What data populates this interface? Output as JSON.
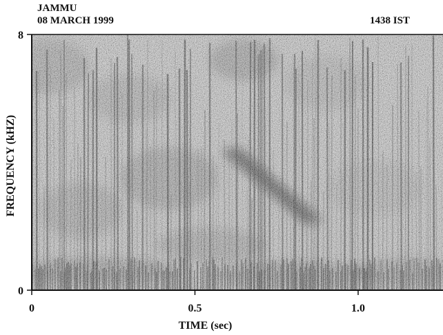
{
  "header": {
    "location": "JAMMU",
    "date": "08 MARCH 1999",
    "time": "1438 IST"
  },
  "chart_data": {
    "type": "heatmap",
    "subtype": "spectrogram",
    "title": "",
    "xlabel": "TIME (sec)",
    "ylabel": "FREQUENCY (kHZ)",
    "xlim": [
      0,
      1.26
    ],
    "ylim": [
      0,
      8
    ],
    "x_ticks": [
      {
        "value": 0,
        "label": "0"
      },
      {
        "value": 0.5,
        "label": "0.5"
      },
      {
        "value": 1.0,
        "label": "1.0"
      }
    ],
    "y_ticks": [
      {
        "value": 0,
        "label": "0"
      },
      {
        "value": 8,
        "label": "8"
      }
    ],
    "colormap": "grayscale",
    "grid": false,
    "colors": {
      "background": "#c4c4c4",
      "ink": "#111111"
    }
  }
}
